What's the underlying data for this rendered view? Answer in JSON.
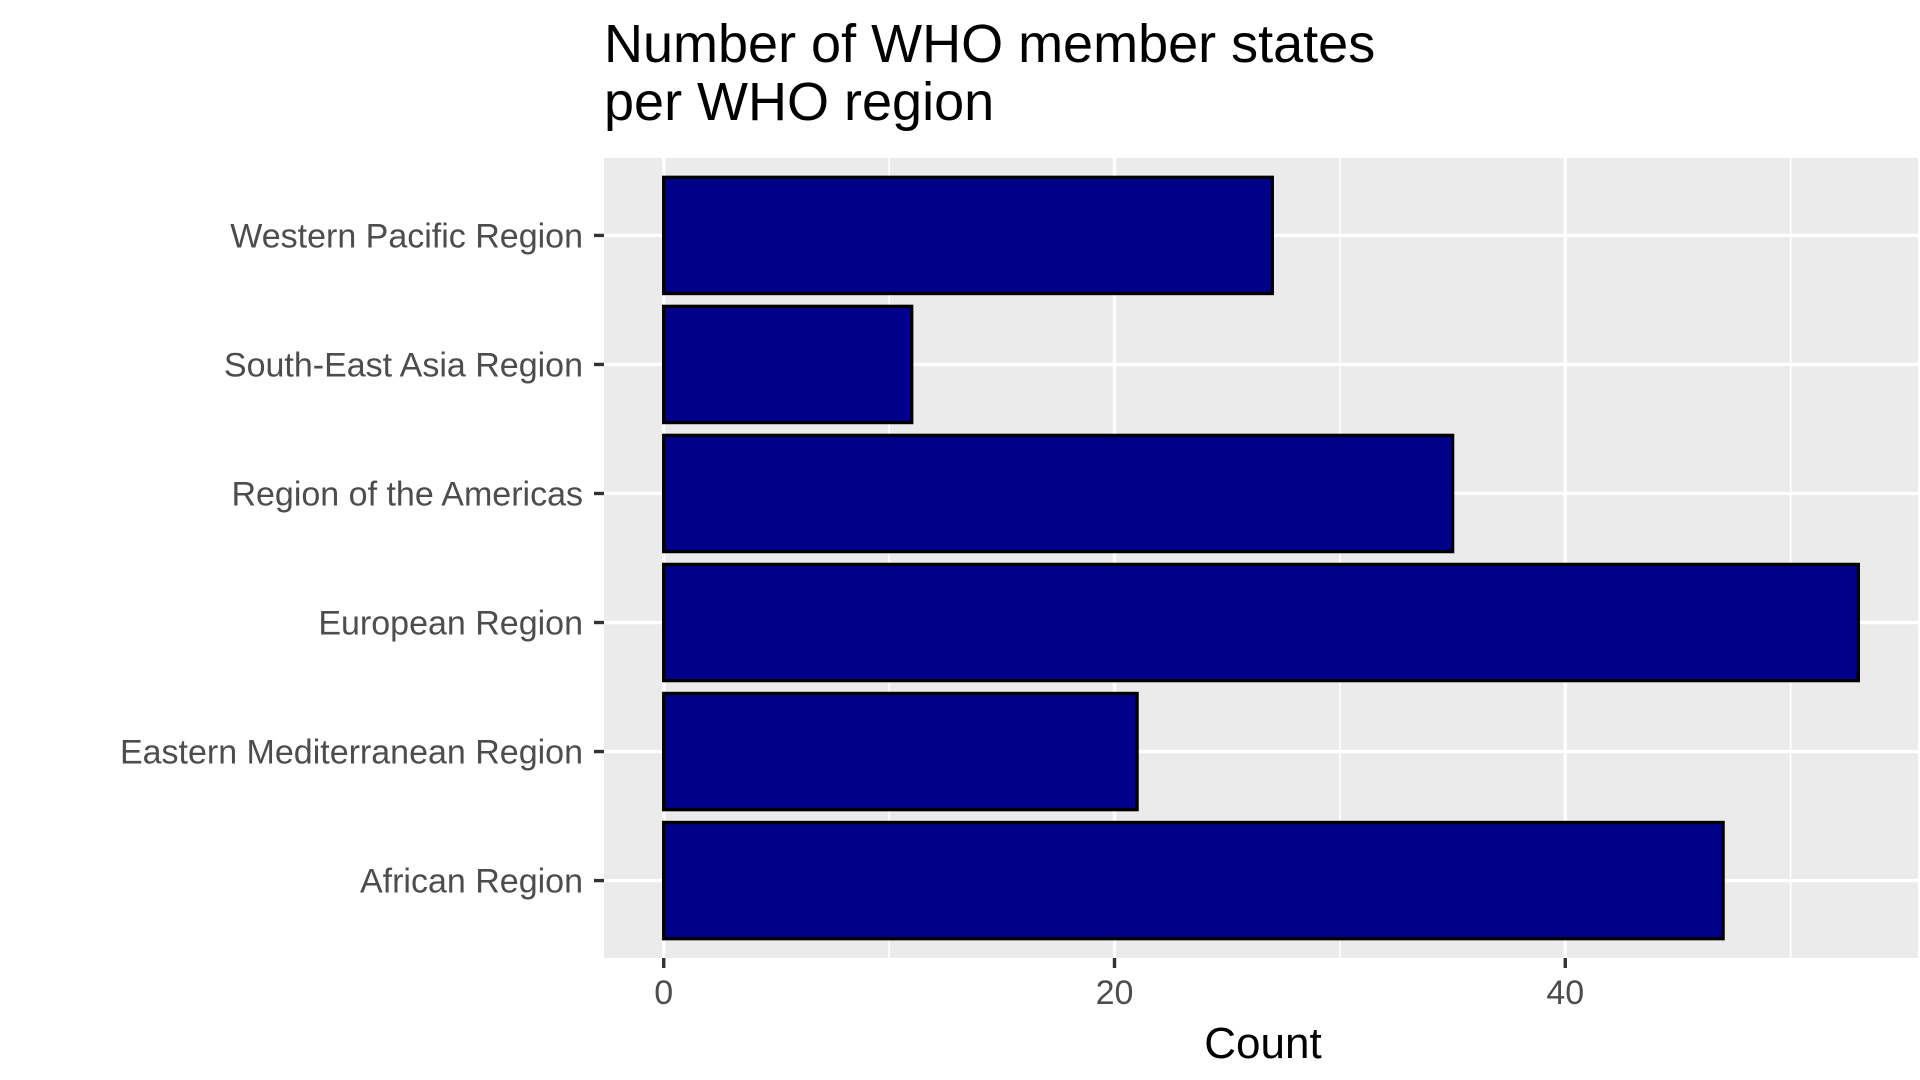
{
  "chart_data": {
    "type": "bar",
    "orientation": "horizontal",
    "title": [
      "Number of WHO member states",
      "per WHO region"
    ],
    "xlabel": "Count",
    "ylabel": "",
    "categories": [
      "African Region",
      "Eastern Mediterranean Region",
      "European Region",
      "Region of the Americas",
      "South-East Asia Region",
      "Western Pacific Region"
    ],
    "values": [
      47,
      21,
      53,
      35,
      11,
      27
    ],
    "xlim": [
      -2.65,
      55.65
    ],
    "xticks": [
      0,
      20,
      40
    ],
    "bar_color": "#00008b",
    "bar_outline": "#000000",
    "panel_background": "#ebebeb",
    "grid": true
  }
}
